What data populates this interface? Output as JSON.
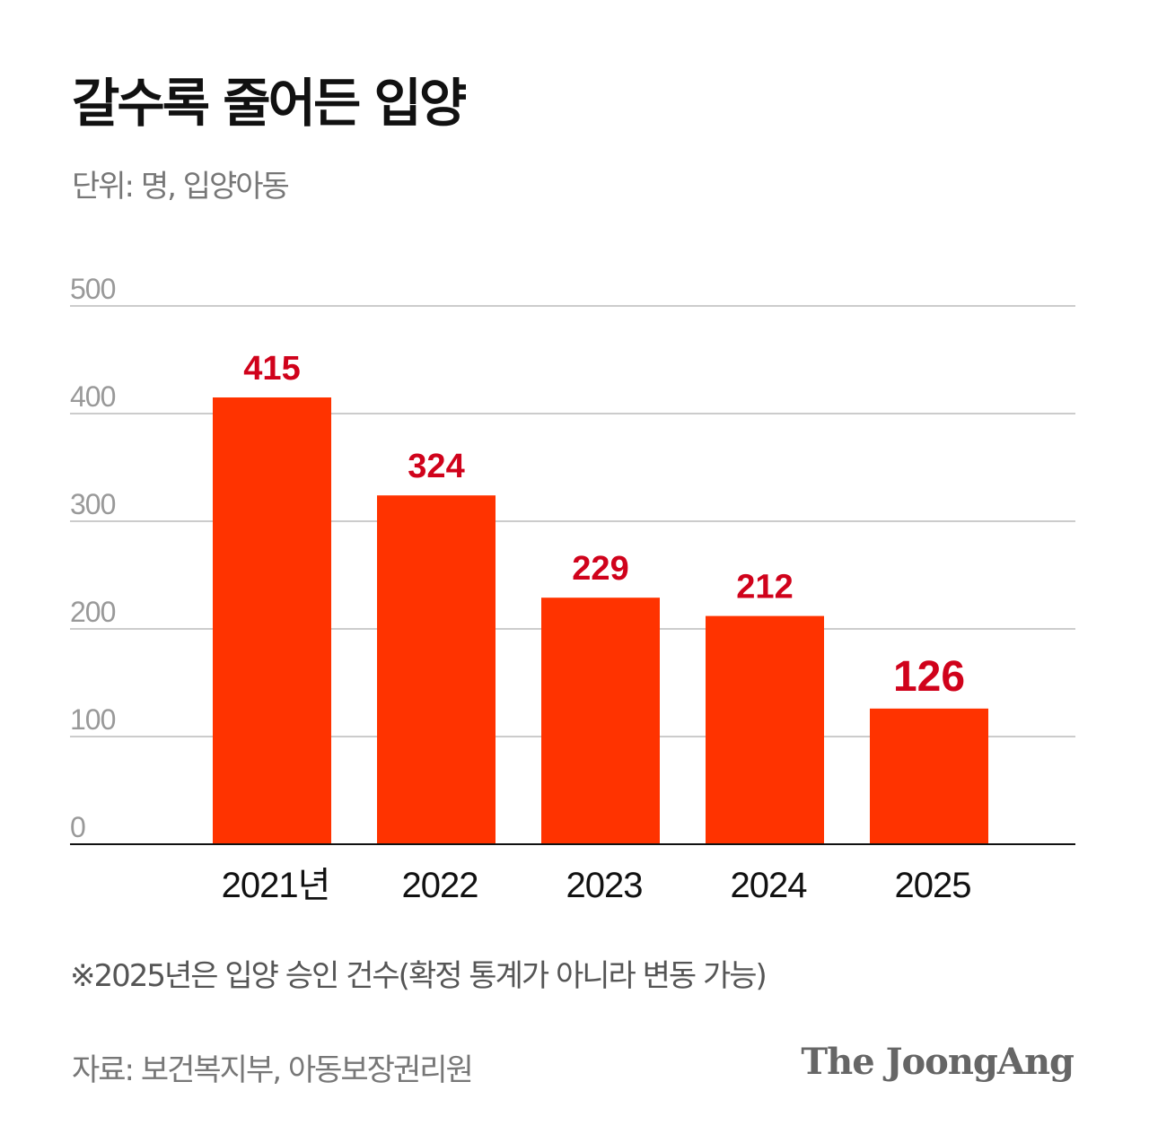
{
  "title": "갈수록 줄어든 입양",
  "subtitle": "단위: 명, 입양아동",
  "footnote": "※2025년은 입양 승인 건수(확정 통계가 아니라 변동 가능)",
  "source": "자료: 보건복지부, 아동보장권리원",
  "logo": "The JoongAng",
  "colors": {
    "bar": "#ff3300",
    "value_label": "#d0021b",
    "grid": "#cccccc",
    "axis_tick": "#999999"
  },
  "chart_data": {
    "type": "bar",
    "categories": [
      "2021년",
      "2022",
      "2023",
      "2024",
      "2025"
    ],
    "values": [
      415,
      324,
      229,
      212,
      126
    ],
    "data_labels": [
      "415",
      "324",
      "229",
      "212",
      "126"
    ],
    "yticks": [
      "0",
      "100",
      "200",
      "300",
      "400",
      "500"
    ],
    "ylim": [
      0,
      500
    ],
    "grid": true
  }
}
